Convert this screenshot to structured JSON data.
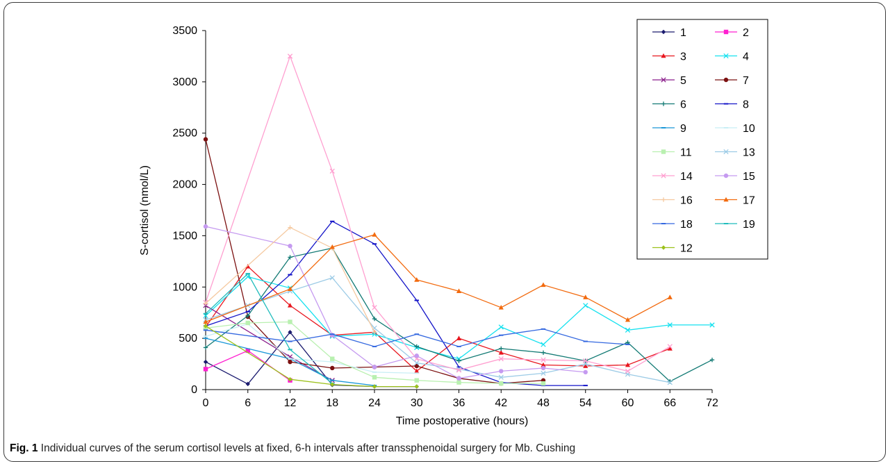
{
  "figure": {
    "caption_label": "Fig. 1",
    "caption_text": "Individual curves of the serum cortisol levels at fixed, 6-h intervals after transsphenoidal surgery for Mb. Cushing"
  },
  "chart_data": {
    "type": "line",
    "title": "",
    "xlabel": "Time postoperative (hours)",
    "ylabel": "S-cortisol  (nmol/L)",
    "xlim": [
      0,
      72
    ],
    "ylim": [
      0,
      3500
    ],
    "x_ticks": [
      0,
      6,
      12,
      18,
      24,
      30,
      36,
      42,
      48,
      54,
      60,
      66,
      72
    ],
    "y_ticks": [
      0,
      500,
      1000,
      1500,
      2000,
      2500,
      3000,
      3500
    ],
    "grid": false,
    "legend_position": "top-right",
    "series": [
      {
        "name": "1",
        "color": "#1a1a6e",
        "marker": "diamond",
        "x": [
          0,
          6,
          12,
          18,
          24,
          30
        ],
        "y": [
          270,
          55,
          560,
          45,
          30,
          30
        ]
      },
      {
        "name": "2",
        "color": "#ff1fd0",
        "marker": "square",
        "x": [
          0,
          6,
          12
        ],
        "y": [
          200,
          380,
          90
        ]
      },
      {
        "name": "3",
        "color": "#e8171f",
        "marker": "triangle",
        "x": [
          0,
          6,
          12,
          18,
          24,
          30,
          36,
          42,
          48,
          54,
          60,
          66
        ],
        "y": [
          610,
          1200,
          820,
          530,
          560,
          180,
          500,
          360,
          240,
          230,
          240,
          400
        ]
      },
      {
        "name": "4",
        "color": "#14e1ef",
        "marker": "x",
        "x": [
          0,
          6,
          12,
          18,
          24,
          30,
          36,
          42,
          48,
          54,
          60,
          66,
          72
        ],
        "y": [
          720,
          1100,
          990,
          520,
          540,
          410,
          300,
          610,
          440,
          820,
          580,
          630,
          630
        ]
      },
      {
        "name": "5",
        "color": "#8b1f8c",
        "marker": "x",
        "x": [
          0,
          12,
          18
        ],
        "y": [
          820,
          320,
          90
        ]
      },
      {
        "name": "7",
        "color": "#7b1010",
        "marker": "circle",
        "x": [
          0,
          6,
          12,
          18,
          24,
          30,
          36,
          42,
          48
        ],
        "y": [
          2440,
          710,
          270,
          210,
          220,
          230,
          110,
          60,
          90
        ]
      },
      {
        "name": "6",
        "color": "#127a74",
        "marker": "plus",
        "x": [
          0,
          6,
          12,
          18,
          24,
          30,
          36,
          42,
          48,
          54,
          60,
          66,
          72
        ],
        "y": [
          410,
          720,
          1290,
          1380,
          690,
          420,
          280,
          400,
          360,
          280,
          460,
          80,
          290
        ]
      },
      {
        "name": "8",
        "color": "#1414c8",
        "marker": "dash",
        "x": [
          0,
          6,
          12,
          18,
          24,
          30,
          36,
          42,
          48,
          54
        ],
        "y": [
          620,
          760,
          1120,
          1640,
          1420,
          870,
          220,
          70,
          40,
          40
        ]
      },
      {
        "name": "9",
        "color": "#1b98d8",
        "marker": "dash",
        "x": [
          0,
          12,
          18,
          24
        ],
        "y": [
          500,
          300,
          90,
          40
        ]
      },
      {
        "name": "10",
        "color": "#c8eef5",
        "marker": "dash",
        "x": [
          0,
          6,
          12,
          18,
          24,
          30
        ],
        "y": [
          520,
          640,
          300,
          270,
          170,
          160
        ]
      },
      {
        "name": "11",
        "color": "#b9f0b0",
        "marker": "square",
        "x": [
          0,
          6,
          12,
          18,
          24,
          30,
          36,
          42,
          48
        ],
        "y": [
          600,
          650,
          660,
          300,
          120,
          90,
          70,
          60,
          60
        ]
      },
      {
        "name": "13",
        "color": "#9ccbe6",
        "marker": "x",
        "x": [
          0,
          6,
          12,
          18,
          24,
          30,
          36,
          42,
          48,
          54,
          60,
          66
        ],
        "y": [
          680,
          820,
          960,
          1090,
          600,
          260,
          200,
          120,
          160,
          250,
          150,
          70
        ]
      },
      {
        "name": "14",
        "color": "#ff9fd0",
        "marker": "x",
        "x": [
          0,
          12,
          18,
          24,
          30,
          36,
          42,
          48,
          54,
          60,
          66
        ],
        "y": [
          850,
          3250,
          2130,
          800,
          300,
          190,
          300,
          290,
          280,
          180,
          420
        ]
      },
      {
        "name": "15",
        "color": "#c59af0",
        "marker": "circle",
        "x": [
          0,
          12,
          18,
          24,
          30,
          36,
          42,
          48,
          54
        ],
        "y": [
          1590,
          1400,
          530,
          220,
          330,
          110,
          180,
          210,
          170
        ]
      },
      {
        "name": "16",
        "color": "#f5c9a0",
        "marker": "plus",
        "x": [
          0,
          12,
          18,
          24
        ],
        "y": [
          840,
          1580,
          1380,
          560
        ]
      },
      {
        "name": "17",
        "color": "#f26a0e",
        "marker": "triangle",
        "x": [
          0,
          12,
          18,
          24,
          30,
          36,
          42,
          48,
          54,
          60,
          66
        ],
        "y": [
          660,
          980,
          1390,
          1510,
          1070,
          960,
          800,
          1020,
          900,
          680,
          900
        ]
      },
      {
        "name": "18",
        "color": "#3468e0",
        "marker": "dash",
        "x": [
          0,
          12,
          18,
          24,
          30,
          36,
          42,
          48,
          54,
          60
        ],
        "y": [
          580,
          470,
          540,
          420,
          540,
          420,
          530,
          590,
          470,
          440
        ]
      },
      {
        "name": "19",
        "color": "#1fbcbc",
        "marker": "dash",
        "x": [
          0,
          6,
          12,
          18
        ],
        "y": [
          740,
          1130,
          390,
          60
        ]
      },
      {
        "name": "12",
        "color": "#9cc11b",
        "marker": "diamond",
        "x": [
          0,
          12,
          18,
          24,
          30
        ],
        "y": [
          620,
          100,
          50,
          30,
          30
        ]
      }
    ]
  }
}
